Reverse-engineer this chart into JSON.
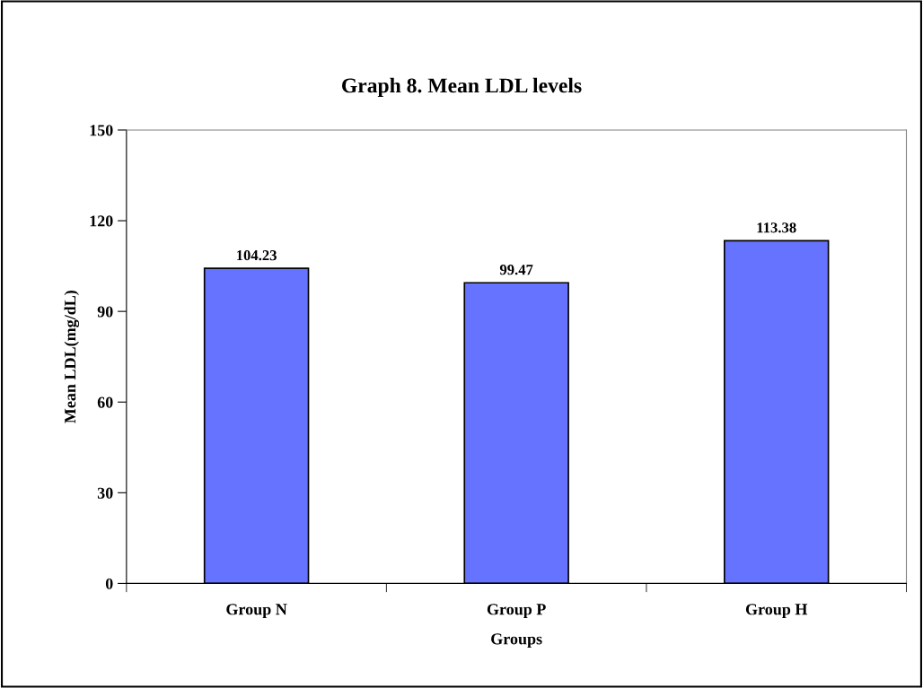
{
  "chart_data": {
    "type": "bar",
    "title": "Graph 8. Mean LDL levels",
    "xlabel": "Groups",
    "ylabel": "Mean LDL(mg/dL)",
    "categories": [
      "Group N",
      "Group P",
      "Group H"
    ],
    "values": [
      104.23,
      99.47,
      113.38
    ],
    "color": "#6673ff",
    "ylim": [
      0,
      150
    ],
    "yticks": [
      0,
      30,
      60,
      90,
      120,
      150
    ],
    "grid": false,
    "data_labels": true,
    "legend": false
  }
}
